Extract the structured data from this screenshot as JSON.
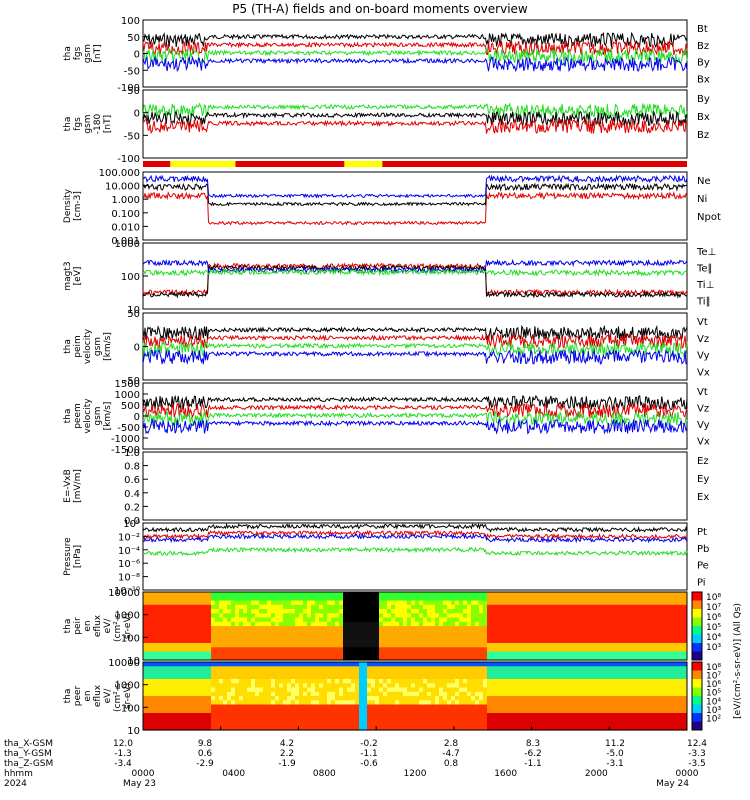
{
  "title": "P5 (TH-A) fields and on-board moments overview",
  "colors": {
    "black": "#000000",
    "red": "#e00000",
    "green": "#22dd22",
    "blue": "#0000ee",
    "yellow": "#ffff00"
  },
  "chart_data": {
    "type": "line",
    "xlim": [
      "0000",
      "0000"
    ],
    "x_ticks_hhmm": [
      "0000",
      "0400",
      "0800",
      "1200",
      "1600",
      "2000",
      "0000"
    ],
    "x_dates": [
      "May 23",
      "May 24"
    ],
    "year": "2024",
    "ephemeris": {
      "labels": [
        "tha_X-GSM",
        "tha_Y-GSM",
        "tha_Z-GSM",
        "hhmm",
        "2024"
      ],
      "X": [
        "12.0",
        "9.8",
        "4.2",
        "-0.2",
        "2.8",
        "8.3",
        "11.2",
        "12.4"
      ],
      "Y": [
        "-1.3",
        "0.6",
        "2.2",
        "-1.1",
        "-4.7",
        "-6.2",
        "-5.0",
        "-3.3"
      ],
      "Z": [
        "-3.4",
        "-2.9",
        "-1.9",
        "-0.6",
        "0.8",
        "-1.1",
        "-3.1",
        "-3.5"
      ]
    },
    "panels": [
      {
        "id": "fgs_gsm",
        "ylabel": [
          "tha",
          "fgs",
          "gsm",
          "[nT]"
        ],
        "ylim": [
          -100,
          100
        ],
        "yticks": [
          "100",
          "50",
          "0",
          "-50",
          "-100"
        ],
        "series": [
          {
            "name": "Bt",
            "color": "#000000"
          },
          {
            "name": "Bz",
            "color": "#e00000"
          },
          {
            "name": "By",
            "color": "#22dd22"
          },
          {
            "name": "Bx",
            "color": "#0000ee"
          }
        ]
      },
      {
        "id": "fgs_gse",
        "ylabel": [
          "tha",
          "fgs",
          "gsm",
          "-180",
          "[nT]"
        ],
        "ylim": [
          -130,
          70
        ],
        "yticks": [
          "50",
          "0",
          "-50",
          "-100"
        ],
        "series": [
          {
            "name": "By",
            "color": "#22dd22"
          },
          {
            "name": "Bx",
            "color": "#000000"
          },
          {
            "name": "Bz",
            "color": "#e00000"
          }
        ]
      },
      {
        "id": "density",
        "ylabel": [
          "Density",
          "[cm-3]"
        ],
        "ylim": [
          "0.001",
          "100.000"
        ],
        "log": true,
        "yticks": [
          "100.000",
          "10.000",
          "1.000",
          "0.100",
          "0.010",
          "0.001"
        ],
        "series": [
          {
            "name": "Ne",
            "color": "#e00000"
          },
          {
            "name": "Ni",
            "color": "#000000"
          },
          {
            "name": "Npot",
            "color": "#0000ee"
          }
        ]
      },
      {
        "id": "temperature",
        "ylabel": [
          "magt3",
          "[eV]"
        ],
        "ylim": [
          10,
          3000
        ],
        "log": true,
        "yticks": [
          "1000",
          "100",
          "10"
        ],
        "series": [
          {
            "name": "Te⊥",
            "color": "#e00000"
          },
          {
            "name": "Te∥",
            "color": "#000000"
          },
          {
            "name": "Ti⊥",
            "color": "#0000ee"
          },
          {
            "name": "Ti∥",
            "color": "#22dd22"
          }
        ]
      },
      {
        "id": "peim_velocity",
        "ylabel": [
          "tha",
          "peim",
          "velocity",
          "gsm",
          "[km/s]"
        ],
        "ylim": [
          -70,
          70
        ],
        "yticks": [
          "50",
          "0",
          "-50"
        ],
        "series": [
          {
            "name": "Vt",
            "color": "#000000"
          },
          {
            "name": "Vz",
            "color": "#e00000"
          },
          {
            "name": "Vy",
            "color": "#22dd22"
          },
          {
            "name": "Vx",
            "color": "#0000ee"
          }
        ]
      },
      {
        "id": "peem_velocity",
        "ylabel": [
          "tha",
          "peem",
          "velocity",
          "gsm",
          "[km/s]"
        ],
        "ylim": [
          -1500,
          1500
        ],
        "yticks": [
          "1500",
          "1000",
          "500",
          "0",
          "-500",
          "-1000",
          "-1500"
        ],
        "series": [
          {
            "name": "Vt",
            "color": "#000000"
          },
          {
            "name": "Vz",
            "color": "#e00000"
          },
          {
            "name": "Vy",
            "color": "#22dd22"
          },
          {
            "name": "Vx",
            "color": "#0000ee"
          }
        ]
      },
      {
        "id": "efield",
        "ylabel": [
          "E=-VxB",
          "[mV/m]"
        ],
        "ylim": [
          0,
          1.0
        ],
        "yticks": [
          "1.0",
          "0.8",
          "0.6",
          "0.4",
          "0.2",
          "0.0"
        ],
        "series": [
          {
            "name": "Ez",
            "color": "#e00000"
          },
          {
            "name": "Ey",
            "color": "#22dd22"
          },
          {
            "name": "Ex",
            "color": "#0000ee"
          }
        ]
      },
      {
        "id": "pressure",
        "ylabel": [
          "Pressure",
          "[nPa]"
        ],
        "ylim": [
          "10^-10",
          "10^0"
        ],
        "log": true,
        "yticks": [
          "10⁰",
          "10⁻²",
          "10⁻⁴",
          "10⁻⁶",
          "10⁻⁸",
          "10⁻¹⁰"
        ],
        "series": [
          {
            "name": "Pt",
            "color": "#000000"
          },
          {
            "name": "Pb",
            "color": "#e00000"
          },
          {
            "name": "Pe",
            "color": "#22dd22"
          },
          {
            "name": "Pi",
            "color": "#0000ee"
          }
        ]
      },
      {
        "id": "peir_eflux",
        "type": "heatmap",
        "ylabel": [
          "tha",
          "peir",
          "en",
          "eflux",
          "eV/",
          "(cm²-s-",
          "sr-eV)"
        ],
        "yticks": [
          "10000",
          "1000",
          "100",
          "10"
        ]
      },
      {
        "id": "peer_eflux",
        "type": "heatmap",
        "ylabel": [
          "tha",
          "peer",
          "en",
          "eflux",
          "eV/",
          "(cm²-s-",
          "sr-eV)"
        ],
        "yticks": [
          "10000",
          "1000",
          "100",
          "10"
        ]
      }
    ],
    "colorbar": {
      "label": "[eV/(cm²-s-sr-eV)] (All Qs)",
      "ticks_upper": [
        "10⁸",
        "10⁷",
        "10⁶",
        "10⁵",
        "10⁴",
        "10³"
      ],
      "ticks_lower": [
        "10⁸",
        "10⁷",
        "10⁶",
        "10⁵",
        "10⁴",
        "10³",
        "10²"
      ]
    }
  }
}
